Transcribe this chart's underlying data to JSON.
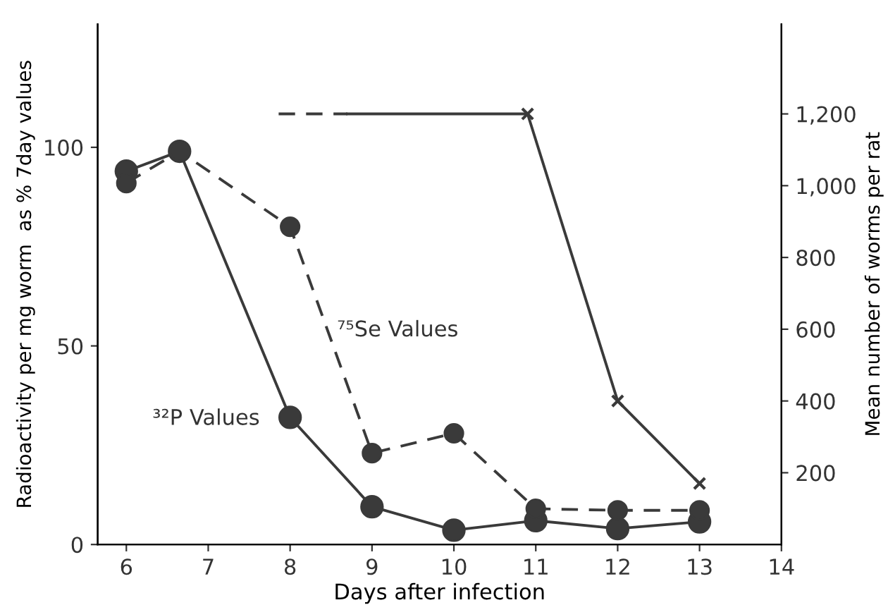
{
  "chart_data": {
    "type": "line",
    "xlabel": "Days after infection",
    "ylabel": "Radioactivity per mg worm  as % 7day values",
    "y2label": "Mean number of worms per rat",
    "xlim": [
      5.65,
      14
    ],
    "xticks": [
      6,
      7,
      8,
      9,
      10,
      11,
      12,
      13,
      14
    ],
    "ylim": [
      0,
      131
    ],
    "yticks": [
      0,
      50,
      100
    ],
    "y2lim": [
      0,
      1450
    ],
    "y2ticks": [
      {
        "value": 200,
        "label": "200"
      },
      {
        "value": 400,
        "label": "400"
      },
      {
        "value": 600,
        "label": "600"
      },
      {
        "value": 800,
        "label": "800"
      },
      {
        "value": 1000,
        "label": "1,000"
      },
      {
        "value": 1200,
        "label": "1,200"
      }
    ],
    "grid": false,
    "legend": false,
    "series": [
      {
        "color": "#3a3a3a",
        "marker": "circle",
        "line_style": "solid",
        "x": [
          6,
          6.65,
          8,
          9,
          10,
          11,
          12,
          13
        ],
        "values": [
          94,
          99,
          32,
          9.5,
          3.6,
          6,
          4,
          5.7
        ]
      },
      {
        "color": "#3a3a3a",
        "marker": "circle",
        "line_style": "dashed",
        "x": [
          6,
          6.65,
          8,
          9,
          10,
          11,
          12,
          13
        ],
        "values": [
          91,
          99,
          80,
          23,
          28,
          9,
          8.6,
          8.6
        ]
      },
      {
        "type": "line",
        "color": "#3a3a3a",
        "marker": "none",
        "line_style": "dashed",
        "axis": "y2",
        "x": [
          7.86,
          8.7
        ],
        "values": [
          1200,
          1200
        ]
      },
      {
        "type": "line",
        "color": "#3a3a3a",
        "marker": "none",
        "line_style": "solid",
        "axis": "y2",
        "x": [
          8.7,
          10.9,
          12,
          13
        ],
        "values": [
          1200,
          1200,
          400,
          170
        ]
      },
      {
        "type": "scatter",
        "color": "#3a3a3a",
        "marker": "cross",
        "axis": "y2",
        "x": [
          10.9,
          12,
          13
        ],
        "values": [
          1200,
          400,
          170
        ]
      }
    ],
    "annotations": [
      "⁷⁵Se Values",
      "³²P Values"
    ]
  }
}
